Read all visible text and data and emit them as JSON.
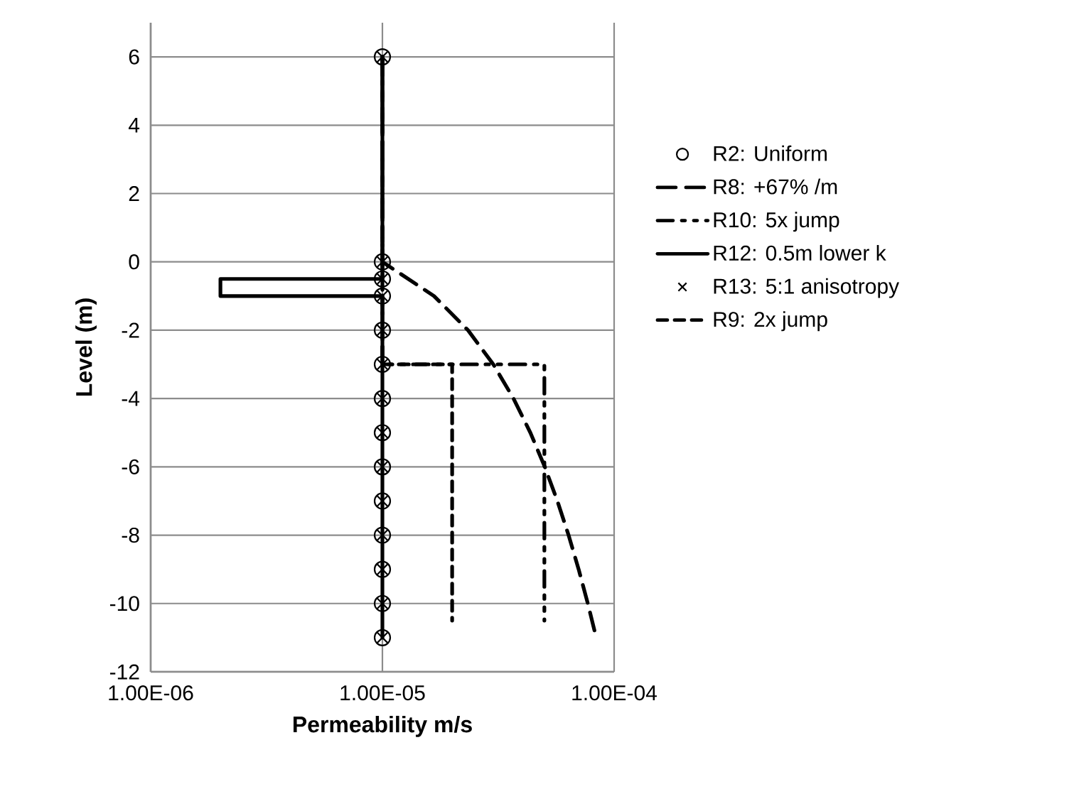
{
  "chart_data": {
    "type": "line",
    "xlabel": "Permeability  m/s",
    "ylabel": "Level  (m)",
    "log": "x",
    "grid": true,
    "legend": "right",
    "xlim": [
      1e-06,
      0.0001
    ],
    "xticks": [
      {
        "value": 1e-06,
        "label": "1.00E-06"
      },
      {
        "value": 1e-05,
        "label": "1.00E-05"
      },
      {
        "value": 0.0001,
        "label": "1.00E-04"
      }
    ],
    "ylim": [
      -12,
      7
    ],
    "yticks": [
      -12,
      -10,
      -8,
      -6,
      -4,
      -2,
      0,
      2,
      4,
      6
    ],
    "series": [
      {
        "name": "R2: Uniform",
        "type": "scatter",
        "marker": "circle",
        "color": "#000000",
        "x": [
          1e-05,
          1e-05,
          1e-05,
          1e-05,
          1e-05,
          1e-05,
          1e-05,
          1e-05,
          1e-05,
          1e-05,
          1e-05,
          1e-05,
          1e-05,
          1e-05
        ],
        "values": [
          6,
          0,
          -0.5,
          -1,
          -2,
          -3,
          -4,
          -5,
          -6,
          -7,
          -8,
          -9,
          -10,
          -11
        ]
      },
      {
        "name": "R8: +67% /m",
        "line_style": "longdash",
        "color": "#000000",
        "x": [
          1e-05,
          1e-05,
          1.67e-05,
          2.34e-05,
          3.01e-05,
          3.68e-05,
          4.35e-05,
          5.02e-05,
          5.69e-05,
          6.36e-05,
          7.03e-05,
          7.7e-05,
          8.37e-05
        ],
        "values": [
          6,
          0,
          -1,
          -2,
          -3,
          -4,
          -5,
          -6,
          -7,
          -8,
          -9,
          -10,
          -11
        ]
      },
      {
        "name": "R10: 5x jump",
        "line_style": "dashdot",
        "color": "#000000",
        "x": [
          1e-05,
          1e-05,
          5e-05,
          5e-05
        ],
        "values": [
          6,
          -3,
          -3,
          -10.5
        ]
      },
      {
        "name": "R12: 0.5m lower k",
        "line_style": "solid",
        "color": "#000000",
        "x": [
          1e-05,
          1e-05,
          2e-06,
          2e-06,
          1e-05,
          1e-05
        ],
        "values": [
          6,
          -0.5,
          -0.5,
          -1,
          -1,
          -11
        ]
      },
      {
        "name": "R13: 5:1 anisotropy",
        "type": "scatter",
        "marker": "cross",
        "color": "#000000",
        "x": [
          1e-05,
          1e-05,
          1e-05,
          1e-05,
          1e-05,
          1e-05,
          1e-05,
          1e-05,
          1e-05,
          1e-05,
          1e-05,
          1e-05,
          1e-05,
          1e-05
        ],
        "values": [
          6,
          0,
          -0.5,
          -1,
          -2,
          -3,
          -4,
          -5,
          -6,
          -7,
          -8,
          -9,
          -10,
          -11
        ]
      },
      {
        "name": "R9: 2x jump",
        "line_style": "dashed",
        "color": "#000000",
        "x": [
          1e-05,
          1e-05,
          2e-05,
          2e-05
        ],
        "values": [
          6,
          -3,
          -3,
          -10.5
        ]
      }
    ]
  }
}
